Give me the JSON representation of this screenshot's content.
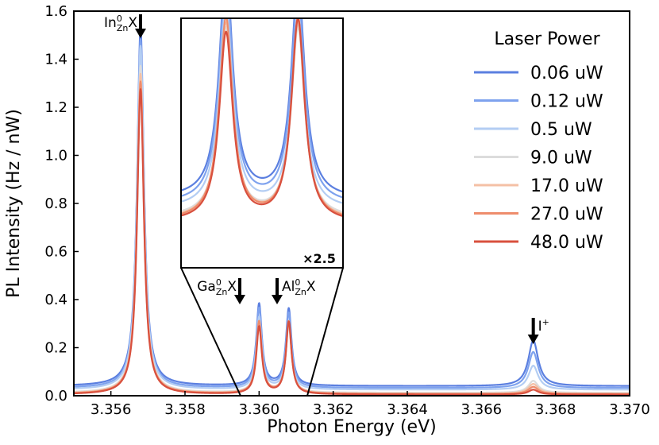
{
  "chart_data": {
    "type": "line",
    "title": "",
    "xlabel": "Photon Energy (eV)",
    "ylabel": "PL Intensity  (Hz / nW)",
    "xlim": [
      3.355,
      3.37
    ],
    "ylim": [
      0.0,
      1.6
    ],
    "xticks": [
      "3.356",
      "3.358",
      "3.360",
      "3.362",
      "3.364",
      "3.366",
      "3.368",
      "3.370"
    ],
    "yticks": [
      "0.0",
      "0.2",
      "0.4",
      "0.6",
      "0.8",
      "1.0",
      "1.2",
      "1.4",
      "1.6"
    ],
    "legend_title": "Laser Power",
    "legend_position": "top-right",
    "series": [
      {
        "name": "0.06 uW",
        "color": "#5b7fe0",
        "baseline": 0.04,
        "amplitudes": [
          1.49,
          0.34,
          0.32,
          0.19
        ]
      },
      {
        "name": "0.12 uW",
        "color": "#7ea2ee",
        "baseline": 0.032,
        "amplitudes": [
          1.45,
          0.33,
          0.31,
          0.15
        ]
      },
      {
        "name": "0.5 uW",
        "color": "#b3cdf3",
        "baseline": 0.025,
        "amplitudes": [
          1.43,
          0.3,
          0.27,
          0.1
        ]
      },
      {
        "name": "9.0 uW",
        "color": "#dcdcdc",
        "baseline": 0.012,
        "amplitudes": [
          1.36,
          0.28,
          0.28,
          0.05
        ]
      },
      {
        "name": "17.0 uW",
        "color": "#f4c0a5",
        "baseline": 0.009,
        "amplitudes": [
          1.33,
          0.29,
          0.29,
          0.04
        ]
      },
      {
        "name": "27.0 uW",
        "color": "#ee8c6c",
        "baseline": 0.007,
        "amplitudes": [
          1.3,
          0.3,
          0.3,
          0.03
        ]
      },
      {
        "name": "48.0 uW",
        "color": "#d8503e",
        "baseline": 0.005,
        "amplitudes": [
          1.27,
          0.28,
          0.3,
          0.02
        ]
      }
    ],
    "peaks": [
      {
        "label": "In0ZnX",
        "energy": 3.3568
      },
      {
        "label": "Ga0ZnX",
        "energy": 3.36
      },
      {
        "label": "Al0ZnX",
        "energy": 3.3608
      },
      {
        "label": "I+",
        "energy": 3.3674
      }
    ],
    "inset": {
      "xlim": [
        3.3595,
        3.3613
      ],
      "scale_label": "×2.5"
    },
    "annotations": [
      {
        "text": "In",
        "sup": "0",
        "sub": "Zn",
        "suffix": "X"
      },
      {
        "text": "Ga",
        "sup": "0",
        "sub": "Zn",
        "suffix": "X"
      },
      {
        "text": "Al",
        "sup": "0",
        "sub": "Zn",
        "suffix": "X"
      },
      {
        "text": "I",
        "sup": "+",
        "sub": "",
        "suffix": ""
      }
    ]
  }
}
